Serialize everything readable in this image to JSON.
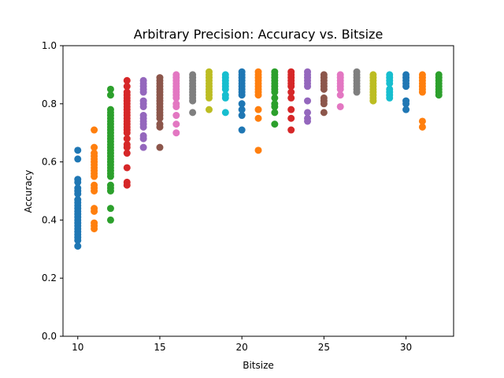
{
  "chart_data": {
    "type": "scatter",
    "title": "Arbitrary Precision: Accuracy vs. Bitsize",
    "xlabel": "Bitsize",
    "ylabel": "Accuracy",
    "xlim": [
      9.1,
      32.9
    ],
    "ylim": [
      0.0,
      1.0
    ],
    "xticks": [
      10,
      15,
      20,
      25,
      30
    ],
    "yticks": [
      0.0,
      0.2,
      0.4,
      0.6,
      0.8,
      1.0
    ],
    "grid": false,
    "legend": "none",
    "series": [
      {
        "x": 10,
        "color": "#1f77b4",
        "values": [
          0.64,
          0.61,
          0.54,
          0.53,
          0.51,
          0.5,
          0.49,
          0.47,
          0.46,
          0.45,
          0.44,
          0.43,
          0.42,
          0.41,
          0.4,
          0.39,
          0.38,
          0.37,
          0.36,
          0.35,
          0.34,
          0.33,
          0.31
        ]
      },
      {
        "x": 11,
        "color": "#ff7f0e",
        "values": [
          0.71,
          0.65,
          0.63,
          0.62,
          0.61,
          0.6,
          0.59,
          0.58,
          0.57,
          0.56,
          0.55,
          0.52,
          0.51,
          0.5,
          0.44,
          0.43,
          0.39,
          0.38,
          0.37
        ]
      },
      {
        "x": 12,
        "color": "#2ca02c",
        "values": [
          0.85,
          0.83,
          0.78,
          0.77,
          0.76,
          0.75,
          0.74,
          0.73,
          0.72,
          0.71,
          0.7,
          0.69,
          0.68,
          0.67,
          0.66,
          0.65,
          0.64,
          0.63,
          0.62,
          0.61,
          0.6,
          0.59,
          0.58,
          0.57,
          0.56,
          0.55,
          0.52,
          0.51,
          0.5,
          0.44,
          0.4
        ]
      },
      {
        "x": 13,
        "color": "#d62728",
        "values": [
          0.88,
          0.86,
          0.84,
          0.83,
          0.82,
          0.81,
          0.8,
          0.79,
          0.78,
          0.77,
          0.76,
          0.75,
          0.74,
          0.73,
          0.72,
          0.71,
          0.7,
          0.68,
          0.66,
          0.65,
          0.63,
          0.58,
          0.53,
          0.52
        ]
      },
      {
        "x": 14,
        "color": "#9467bd",
        "values": [
          0.88,
          0.87,
          0.86,
          0.85,
          0.84,
          0.81,
          0.8,
          0.79,
          0.76,
          0.75,
          0.74,
          0.73,
          0.72,
          0.69,
          0.68,
          0.65
        ]
      },
      {
        "x": 15,
        "color": "#8c564b",
        "values": [
          0.89,
          0.88,
          0.87,
          0.86,
          0.85,
          0.84,
          0.83,
          0.82,
          0.81,
          0.8,
          0.79,
          0.78,
          0.77,
          0.76,
          0.75,
          0.73,
          0.72,
          0.65
        ]
      },
      {
        "x": 16,
        "color": "#e377c2",
        "values": [
          0.9,
          0.89,
          0.88,
          0.87,
          0.86,
          0.85,
          0.84,
          0.83,
          0.82,
          0.8,
          0.79,
          0.76,
          0.73,
          0.7
        ]
      },
      {
        "x": 17,
        "color": "#7f7f7f",
        "values": [
          0.9,
          0.89,
          0.88,
          0.87,
          0.86,
          0.85,
          0.84,
          0.83,
          0.82,
          0.81,
          0.77
        ]
      },
      {
        "x": 18,
        "color": "#bcbd22",
        "values": [
          0.91,
          0.9,
          0.89,
          0.88,
          0.87,
          0.86,
          0.85,
          0.84,
          0.83,
          0.82,
          0.78
        ]
      },
      {
        "x": 19,
        "color": "#17becf",
        "values": [
          0.9,
          0.89,
          0.88,
          0.87,
          0.86,
          0.85,
          0.83,
          0.82,
          0.77
        ]
      },
      {
        "x": 20,
        "color": "#1f77b4",
        "values": [
          0.91,
          0.9,
          0.89,
          0.88,
          0.87,
          0.86,
          0.85,
          0.84,
          0.83,
          0.8,
          0.78,
          0.76,
          0.71
        ]
      },
      {
        "x": 21,
        "color": "#ff7f0e",
        "values": [
          0.91,
          0.9,
          0.89,
          0.88,
          0.87,
          0.86,
          0.85,
          0.84,
          0.83,
          0.78,
          0.75,
          0.64
        ]
      },
      {
        "x": 22,
        "color": "#2ca02c",
        "values": [
          0.91,
          0.9,
          0.89,
          0.88,
          0.87,
          0.86,
          0.85,
          0.84,
          0.82,
          0.8,
          0.79,
          0.77,
          0.73
        ]
      },
      {
        "x": 23,
        "color": "#d62728",
        "values": [
          0.91,
          0.9,
          0.89,
          0.88,
          0.87,
          0.86,
          0.84,
          0.82,
          0.78,
          0.75,
          0.71
        ]
      },
      {
        "x": 24,
        "color": "#9467bd",
        "values": [
          0.91,
          0.9,
          0.89,
          0.88,
          0.87,
          0.86,
          0.81,
          0.77,
          0.75,
          0.74
        ]
      },
      {
        "x": 25,
        "color": "#8c564b",
        "values": [
          0.9,
          0.89,
          0.88,
          0.87,
          0.86,
          0.85,
          0.82,
          0.81,
          0.8,
          0.77
        ]
      },
      {
        "x": 26,
        "color": "#e377c2",
        "values": [
          0.9,
          0.89,
          0.88,
          0.87,
          0.86,
          0.85,
          0.83,
          0.79
        ]
      },
      {
        "x": 27,
        "color": "#7f7f7f",
        "values": [
          0.91,
          0.9,
          0.89,
          0.88,
          0.87,
          0.86,
          0.85,
          0.84
        ]
      },
      {
        "x": 28,
        "color": "#bcbd22",
        "values": [
          0.9,
          0.89,
          0.88,
          0.87,
          0.86,
          0.85,
          0.84,
          0.83,
          0.82,
          0.81
        ]
      },
      {
        "x": 29,
        "color": "#17becf",
        "values": [
          0.9,
          0.89,
          0.88,
          0.87,
          0.85,
          0.84,
          0.83,
          0.82
        ]
      },
      {
        "x": 30,
        "color": "#1f77b4",
        "values": [
          0.9,
          0.89,
          0.88,
          0.87,
          0.86,
          0.81,
          0.8,
          0.78
        ]
      },
      {
        "x": 31,
        "color": "#ff7f0e",
        "values": [
          0.9,
          0.89,
          0.88,
          0.87,
          0.86,
          0.85,
          0.84,
          0.74,
          0.72
        ]
      },
      {
        "x": 32,
        "color": "#2ca02c",
        "values": [
          0.9,
          0.89,
          0.88,
          0.87,
          0.86,
          0.85,
          0.84,
          0.83
        ]
      }
    ]
  }
}
